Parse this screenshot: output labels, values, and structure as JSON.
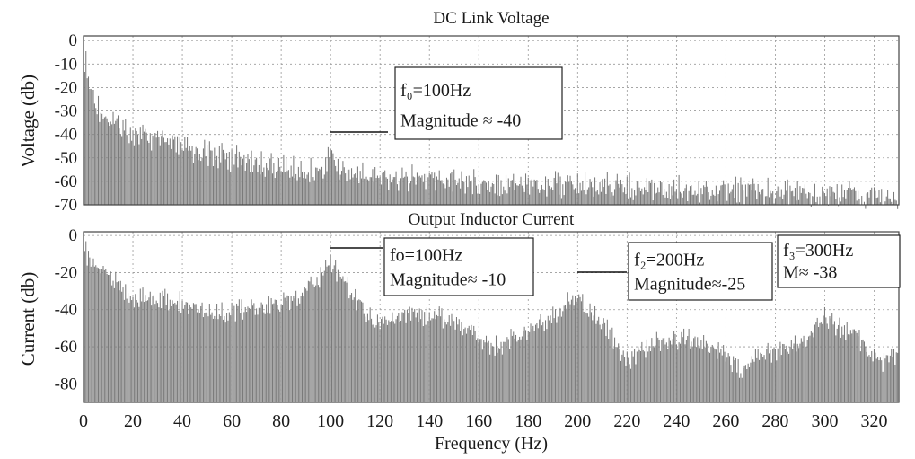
{
  "chart_data": [
    {
      "type": "bar",
      "title": "DC Link Voltage",
      "ylabel": "Voltage (db)",
      "xlabel": "",
      "xlim": [
        0,
        330
      ],
      "ylim": [
        -70,
        2
      ],
      "yticks": [
        0,
        -10,
        -20,
        -30,
        -40,
        -50,
        -60,
        -70
      ],
      "xticks": [
        0,
        20,
        40,
        60,
        80,
        100,
        120,
        140,
        160,
        180,
        200,
        220,
        240,
        260,
        280,
        300,
        320
      ],
      "grid": true,
      "legend": "none",
      "bar_color": "#7a7a7a",
      "envelope": [
        [
          0,
          0
        ],
        [
          1,
          -4
        ],
        [
          2,
          -12
        ],
        [
          4,
          -18
        ],
        [
          6,
          -22
        ],
        [
          10,
          -28
        ],
        [
          15,
          -31
        ],
        [
          20,
          -33
        ],
        [
          30,
          -37
        ],
        [
          40,
          -40
        ],
        [
          50,
          -42
        ],
        [
          60,
          -44
        ],
        [
          70,
          -46
        ],
        [
          80,
          -48
        ],
        [
          90,
          -50
        ],
        [
          97,
          -50
        ],
        [
          100,
          -41
        ],
        [
          103,
          -48
        ],
        [
          110,
          -51
        ],
        [
          120,
          -52
        ],
        [
          140,
          -53
        ],
        [
          160,
          -54
        ],
        [
          180,
          -55
        ],
        [
          200,
          -55.5
        ],
        [
          220,
          -56
        ],
        [
          240,
          -57
        ],
        [
          260,
          -57.5
        ],
        [
          280,
          -58.5
        ],
        [
          300,
          -59
        ],
        [
          320,
          -60
        ],
        [
          330,
          -60.5
        ]
      ],
      "annotations": [
        {
          "line1": "f₀=100Hz",
          "line2": "Magnitude ≈ -40",
          "x": 100,
          "y": -40
        }
      ]
    },
    {
      "type": "bar",
      "title": "Output Inductor Current",
      "ylabel": "Current (db)",
      "xlabel": "Frequency (Hz)",
      "xlim": [
        0,
        330
      ],
      "ylim": [
        -90,
        2
      ],
      "yticks": [
        0,
        -20,
        -40,
        -60,
        -80
      ],
      "xticks": [
        0,
        20,
        40,
        60,
        80,
        100,
        120,
        140,
        160,
        180,
        200,
        220,
        240,
        260,
        280,
        300,
        320
      ],
      "grid": true,
      "legend": "none",
      "bar_color": "#7a7a7a",
      "envelope": [
        [
          0,
          0
        ],
        [
          1,
          -3
        ],
        [
          3,
          -10
        ],
        [
          5,
          -12
        ],
        [
          10,
          -15
        ],
        [
          15,
          -22
        ],
        [
          20,
          -28
        ],
        [
          30,
          -28
        ],
        [
          40,
          -30
        ],
        [
          50,
          -35
        ],
        [
          60,
          -35
        ],
        [
          70,
          -33
        ],
        [
          80,
          -31
        ],
        [
          88,
          -25
        ],
        [
          95,
          -18
        ],
        [
          100,
          -8
        ],
        [
          105,
          -18
        ],
        [
          110,
          -28
        ],
        [
          118,
          -42
        ],
        [
          125,
          -40
        ],
        [
          130,
          -37
        ],
        [
          140,
          -37
        ],
        [
          150,
          -40
        ],
        [
          160,
          -50
        ],
        [
          165,
          -55
        ],
        [
          170,
          -52
        ],
        [
          180,
          -45
        ],
        [
          190,
          -38
        ],
        [
          196,
          -30
        ],
        [
          200,
          -25
        ],
        [
          204,
          -35
        ],
        [
          210,
          -40
        ],
        [
          215,
          -52
        ],
        [
          220,
          -62
        ],
        [
          226,
          -55
        ],
        [
          235,
          -50
        ],
        [
          245,
          -50
        ],
        [
          255,
          -55
        ],
        [
          262,
          -62
        ],
        [
          266,
          -68
        ],
        [
          272,
          -60
        ],
        [
          280,
          -56
        ],
        [
          290,
          -52
        ],
        [
          296,
          -44
        ],
        [
          300,
          -38
        ],
        [
          305,
          -43
        ],
        [
          312,
          -46
        ],
        [
          318,
          -58
        ],
        [
          324,
          -62
        ],
        [
          330,
          -60
        ]
      ],
      "annotations": [
        {
          "line1": "fo=100Hz",
          "line2": "Magnitude≈ -10",
          "x": 100,
          "y": -10
        },
        {
          "line1": "f₂=200Hz",
          "line2": "Magnitude≈-25",
          "x": 200,
          "y": -25
        },
        {
          "line1": "f₃=300Hz",
          "line2": "M≈ -38",
          "x": 300,
          "y": -38
        }
      ]
    }
  ]
}
